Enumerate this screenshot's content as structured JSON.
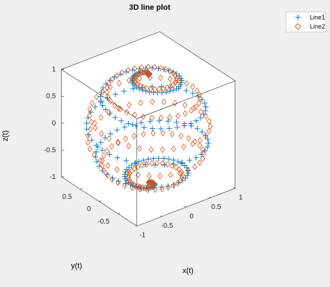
{
  "chart_data": {
    "type": "line",
    "projection": "3d",
    "title": "3D line plot",
    "xlabel": "x(t)",
    "ylabel": "y(t)",
    "zlabel": "z(t)",
    "xlim": [
      -1,
      1
    ],
    "ylim": [
      -1,
      1
    ],
    "zlim": [
      -1,
      1
    ],
    "x_ticks": [
      "-1",
      "-0.5",
      "0",
      "0.5",
      "1"
    ],
    "y_ticks": [
      "0.5",
      "0",
      "-0.5"
    ],
    "z_ticks": [
      "1",
      "0.5",
      "0",
      "-0.5",
      "-1"
    ],
    "grid": false,
    "box": true,
    "legend_position": "top-right",
    "series": [
      {
        "name": "Line1",
        "marker": "+",
        "color": "#0072BD",
        "curve": "spherical spiral",
        "equation": {
          "x": "sin(t)·cos(10t)",
          "y": "sin(t)·sin(10t)",
          "z": "cos(t)"
        },
        "t_range": [
          0,
          3.14159
        ],
        "points": 200
      },
      {
        "name": "Line2",
        "marker": "diamond",
        "color": "#D95319",
        "curve": "spherical spiral",
        "equation": {
          "x": "sin(t)·cos(12t)",
          "y": "sin(t)·sin(12t)",
          "z": "cos(t)"
        },
        "t_range": [
          0,
          3.14159
        ],
        "points": 200
      }
    ]
  }
}
